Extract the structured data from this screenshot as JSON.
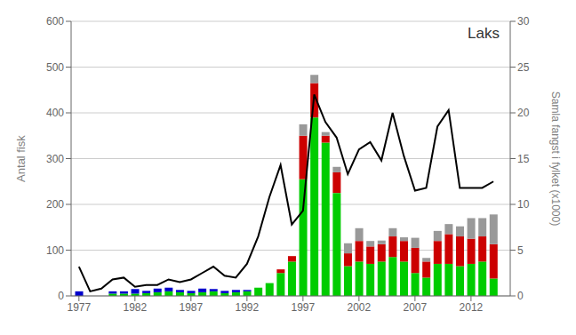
{
  "chart_data": {
    "type": "bar",
    "title": "Laks",
    "stacked": true,
    "grid": true,
    "x": [
      1977,
      1978,
      1979,
      1980,
      1981,
      1982,
      1983,
      1984,
      1985,
      1986,
      1987,
      1988,
      1989,
      1990,
      1991,
      1992,
      1993,
      1994,
      1995,
      1996,
      1997,
      1998,
      1999,
      2000,
      2001,
      2002,
      2003,
      2004,
      2005,
      2006,
      2007,
      2008,
      2009,
      2010,
      2011,
      2012,
      2013,
      2014
    ],
    "xlim": [
      1976.3,
      2015.5
    ],
    "xticks": [
      1977,
      1982,
      1987,
      1992,
      1997,
      2002,
      2007,
      2012
    ],
    "y_label": "Antal fisk",
    "ylim": [
      0,
      600
    ],
    "yticks": [
      0,
      100,
      200,
      300,
      400,
      500,
      600
    ],
    "y2_label": "Samla fangst i fylket (x1000)",
    "y2lim": [
      0,
      30
    ],
    "y2ticks": [
      0,
      5,
      10,
      15,
      20,
      25,
      30
    ],
    "series": [
      {
        "type": "bar",
        "color": "#00cc00",
        "values": [
          0,
          0,
          0,
          5,
          5,
          5,
          6,
          8,
          10,
          8,
          6,
          8,
          10,
          6,
          8,
          10,
          18,
          28,
          50,
          75,
          255,
          390,
          335,
          225,
          65,
          75,
          70,
          75,
          85,
          75,
          50,
          40,
          70,
          70,
          65,
          70,
          75,
          38
        ]
      },
      {
        "type": "bar",
        "color": "#cc0000",
        "values": [
          0,
          0,
          0,
          0,
          0,
          0,
          0,
          0,
          0,
          0,
          0,
          0,
          0,
          0,
          0,
          0,
          0,
          0,
          8,
          12,
          95,
          75,
          15,
          45,
          28,
          45,
          38,
          38,
          45,
          45,
          55,
          35,
          50,
          65,
          65,
          55,
          55,
          75
        ]
      },
      {
        "type": "bar",
        "color": "#0000cc",
        "values": [
          10,
          0,
          0,
          5,
          5,
          10,
          5,
          8,
          8,
          5,
          5,
          8,
          5,
          5,
          5,
          3,
          0,
          0,
          0,
          0,
          0,
          0,
          0,
          0,
          0,
          0,
          0,
          0,
          0,
          0,
          0,
          0,
          0,
          0,
          0,
          0,
          0,
          0
        ]
      },
      {
        "type": "bar",
        "color": "#999999",
        "values": [
          0,
          0,
          0,
          0,
          0,
          0,
          0,
          0,
          0,
          0,
          0,
          0,
          0,
          0,
          0,
          0,
          0,
          0,
          0,
          0,
          25,
          18,
          8,
          12,
          22,
          28,
          12,
          8,
          18,
          8,
          22,
          8,
          22,
          22,
          22,
          45,
          40,
          65
        ]
      },
      {
        "type": "line",
        "axis": "y2",
        "color": "#000000",
        "values": [
          3.2,
          0.5,
          0.8,
          1.8,
          2.0,
          1.0,
          1.2,
          1.2,
          1.8,
          1.5,
          1.8,
          2.5,
          3.2,
          2.2,
          2.0,
          3.5,
          6.5,
          10.8,
          14.3,
          7.8,
          9.3,
          22.0,
          19.0,
          17.3,
          13.3,
          16.0,
          16.8,
          14.8,
          20.0,
          15.3,
          11.5,
          11.8,
          18.5,
          20.3,
          11.8,
          11.8,
          11.8,
          12.5
        ]
      }
    ]
  }
}
